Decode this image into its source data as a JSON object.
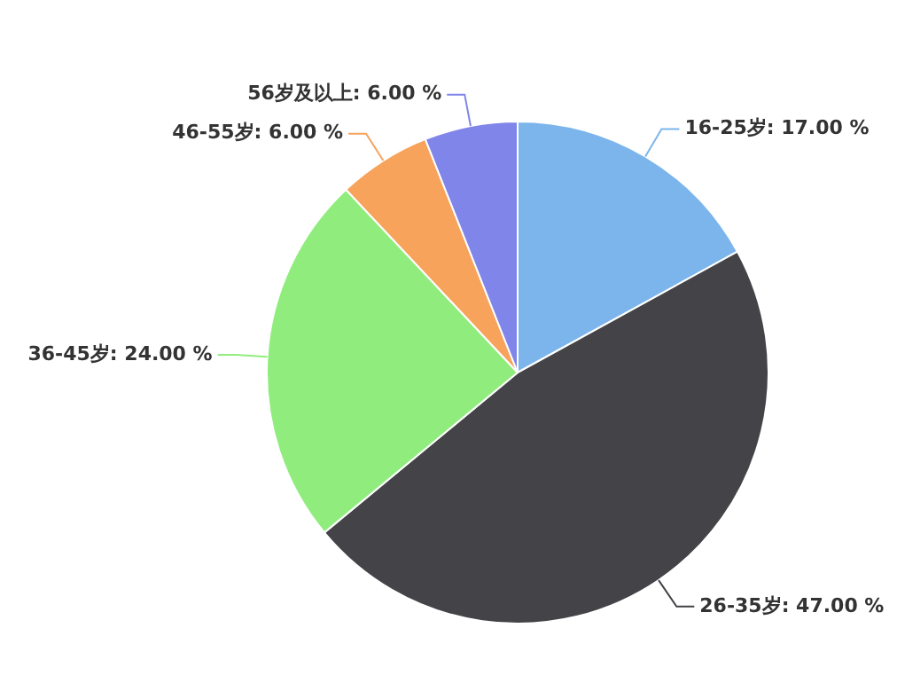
{
  "chart_data": {
    "type": "pie",
    "categories": [
      "16-25岁",
      "26-35岁",
      "36-45岁",
      "46-55岁",
      "56岁及以上"
    ],
    "values": [
      17,
      47,
      24,
      6,
      6
    ],
    "value_labels": [
      "17.00 %",
      "47.00 %",
      "24.00 %",
      "6.00 %",
      "6.00 %"
    ],
    "colors": [
      "#7cb5ec",
      "#434348",
      "#90ed7d",
      "#f7a35c",
      "#8085e9"
    ],
    "legend": false
  }
}
